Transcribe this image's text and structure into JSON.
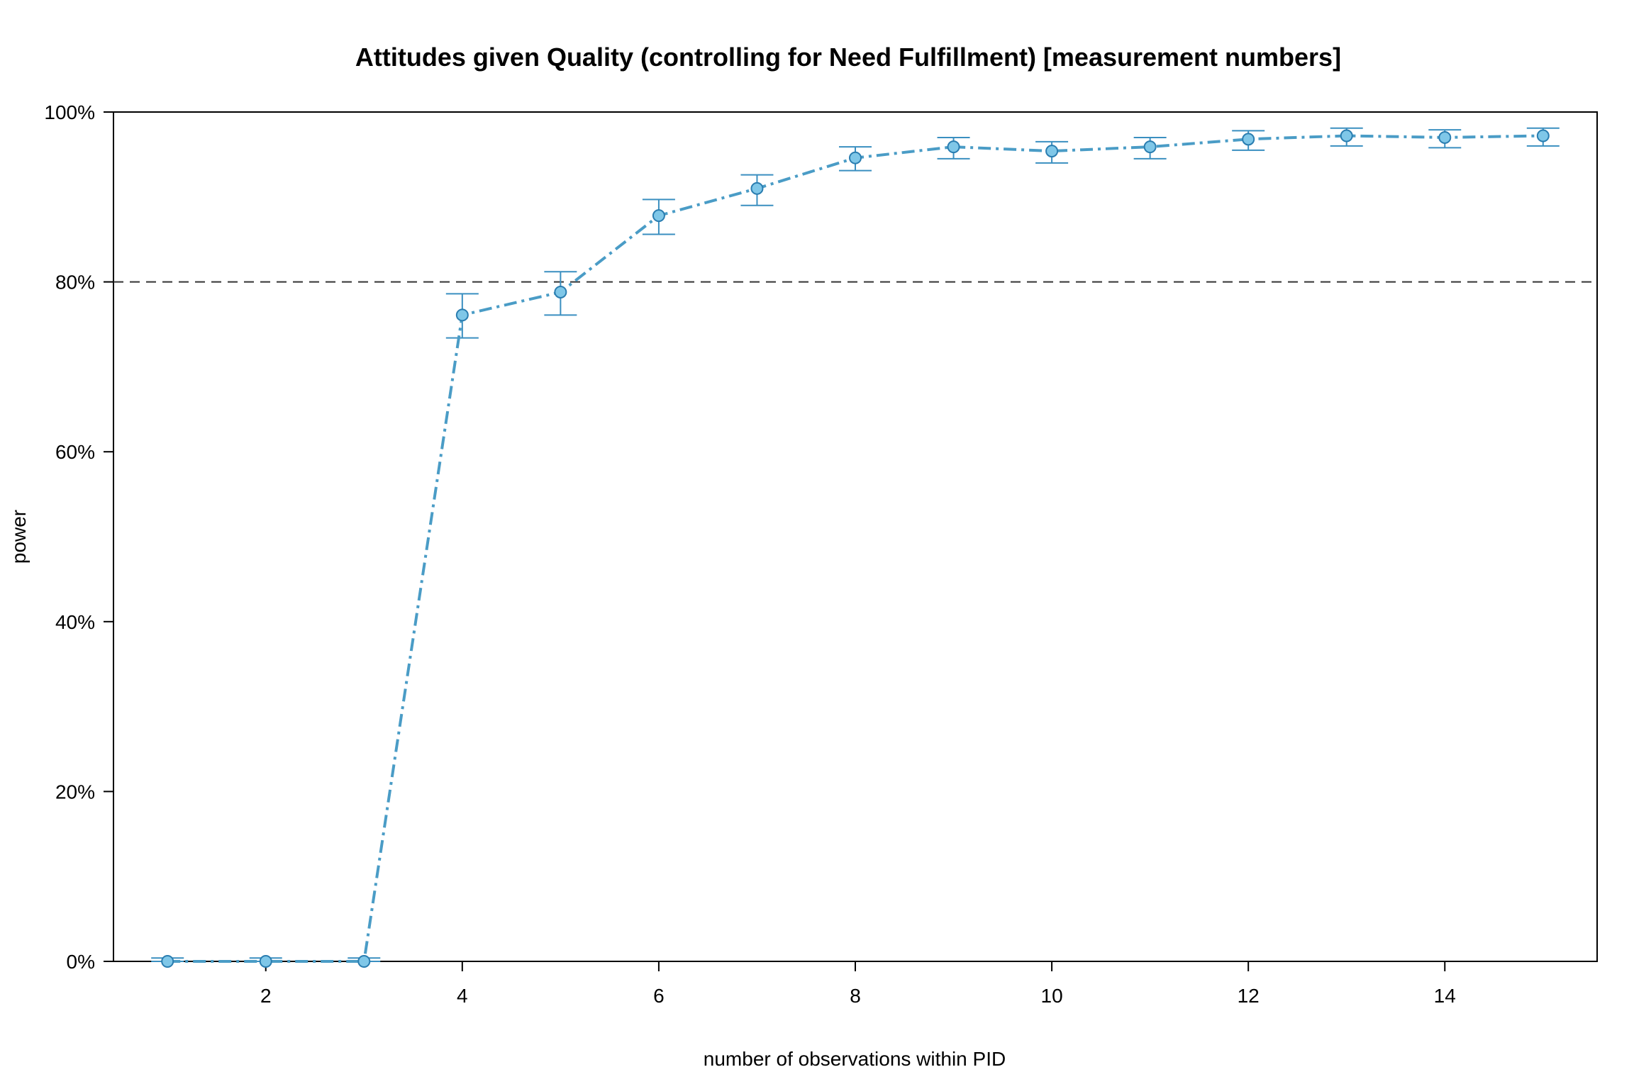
{
  "chart_data": {
    "type": "line",
    "title": "Attitudes given Quality (controlling for Need Fulfillment) [measurement numbers]",
    "xlabel": "number of observations within PID",
    "ylabel": "power",
    "xlim": [
      0.45,
      15.55
    ],
    "ylim": [
      0,
      100
    ],
    "x_ticks": [
      2,
      4,
      6,
      8,
      10,
      12,
      14
    ],
    "x_tick_labels": [
      "2",
      "4",
      "6",
      "8",
      "10",
      "12",
      "14"
    ],
    "y_ticks": [
      0,
      20,
      40,
      60,
      80,
      100
    ],
    "y_tick_labels": [
      "0%",
      "20%",
      "40%",
      "60%",
      "80%",
      "100%"
    ],
    "reference_line": 80,
    "grid": false,
    "series": [
      {
        "x": [
          1,
          2,
          3,
          4,
          5,
          6,
          7,
          8,
          9,
          10,
          11,
          12,
          13,
          14,
          15
        ],
        "values": [
          0.0,
          0.0,
          0.0,
          76.1,
          78.8,
          87.8,
          91.0,
          94.6,
          95.9,
          95.4,
          95.9,
          96.8,
          97.2,
          97.0,
          97.2
        ],
        "lower": [
          0.0,
          0.0,
          0.0,
          73.4,
          76.1,
          85.6,
          89.0,
          93.1,
          94.5,
          94.0,
          94.5,
          95.5,
          96.0,
          95.8,
          96.0
        ],
        "upper": [
          0.4,
          0.4,
          0.4,
          78.6,
          81.2,
          89.7,
          92.6,
          95.9,
          97.0,
          96.5,
          97.0,
          97.8,
          98.1,
          97.9,
          98.1
        ]
      }
    ],
    "colors": {
      "line": "#4a9cc6",
      "errorbar": "#3a8fc0",
      "marker_fill": "#7fc7e8",
      "marker_stroke": "#2a7db0",
      "reference": "#333333",
      "frame": "#000000"
    }
  }
}
